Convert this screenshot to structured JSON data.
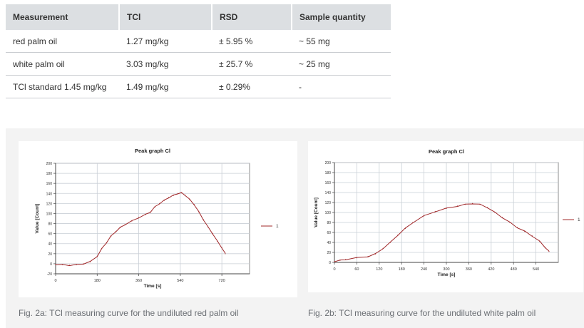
{
  "table": {
    "headers": [
      "Measurement",
      "TCl",
      "RSD",
      "Sample quantity"
    ],
    "rows": [
      [
        "red palm oil",
        "1.27 mg/kg",
        "± 5.95 %",
        "~ 55 mg"
      ],
      [
        "white palm oil",
        "3.03 mg/kg",
        "± 25.7 %",
        "~ 25 mg"
      ],
      [
        "TCl standard 1.45 mg/kg",
        "1.49 mg/kg",
        "± 0.29%",
        "-"
      ]
    ]
  },
  "figures": [
    {
      "caption": "Fig. 2a: TCl measuring curve for the undiluted red palm oil"
    },
    {
      "caption": "Fig. 2b: TCl measuring curve for the undiluted white palm oil"
    }
  ],
  "chart_data": [
    {
      "type": "line",
      "title": "Peak graph Cl",
      "xlabel": "Time [s]",
      "ylabel": "Value [Count]",
      "xlim": [
        0,
        840
      ],
      "ylim": [
        -20,
        200
      ],
      "xticks": [
        0,
        180,
        360,
        540,
        720
      ],
      "yticks": [
        -20,
        0,
        20,
        40,
        60,
        80,
        100,
        120,
        140,
        160,
        180,
        200
      ],
      "grid": true,
      "legend": "right",
      "series": [
        {
          "name": "1",
          "color": "#a0282a",
          "x": [
            0,
            30,
            60,
            90,
            120,
            150,
            180,
            200,
            220,
            240,
            260,
            280,
            300,
            330,
            360,
            390,
            410,
            430,
            450,
            470,
            490,
            510,
            530,
            545,
            560,
            580,
            600,
            620,
            640,
            660,
            680,
            700,
            720,
            735
          ],
          "y": [
            -1,
            -2,
            -3,
            -2,
            0,
            4,
            15,
            30,
            42,
            55,
            64,
            72,
            78,
            85,
            92,
            98,
            103,
            113,
            120,
            126,
            132,
            136,
            140,
            141,
            137,
            128,
            118,
            103,
            88,
            73,
            60,
            45,
            32,
            20
          ]
        }
      ]
    },
    {
      "type": "line",
      "title": "Peak graph Cl",
      "xlabel": "Time [s]",
      "ylabel": "Value [Count]",
      "xlim": [
        0,
        600
      ],
      "ylim": [
        0,
        200
      ],
      "xticks": [
        0,
        60,
        120,
        180,
        240,
        300,
        360,
        420,
        480,
        540
      ],
      "yticks": [
        0,
        20,
        40,
        60,
        80,
        100,
        120,
        140,
        160,
        180,
        200
      ],
      "grid": true,
      "legend": "right",
      "series": [
        {
          "name": "1",
          "color": "#a0282a",
          "x": [
            0,
            15,
            30,
            60,
            90,
            110,
            130,
            150,
            170,
            190,
            210,
            240,
            270,
            300,
            330,
            350,
            370,
            390,
            410,
            430,
            450,
            470,
            490,
            510,
            530,
            550,
            565,
            575
          ],
          "y": [
            2,
            4,
            6,
            9,
            12,
            17,
            28,
            40,
            55,
            68,
            80,
            93,
            102,
            108,
            113,
            116,
            118,
            116,
            110,
            100,
            90,
            80,
            70,
            62,
            53,
            42,
            30,
            22
          ]
        }
      ]
    }
  ]
}
